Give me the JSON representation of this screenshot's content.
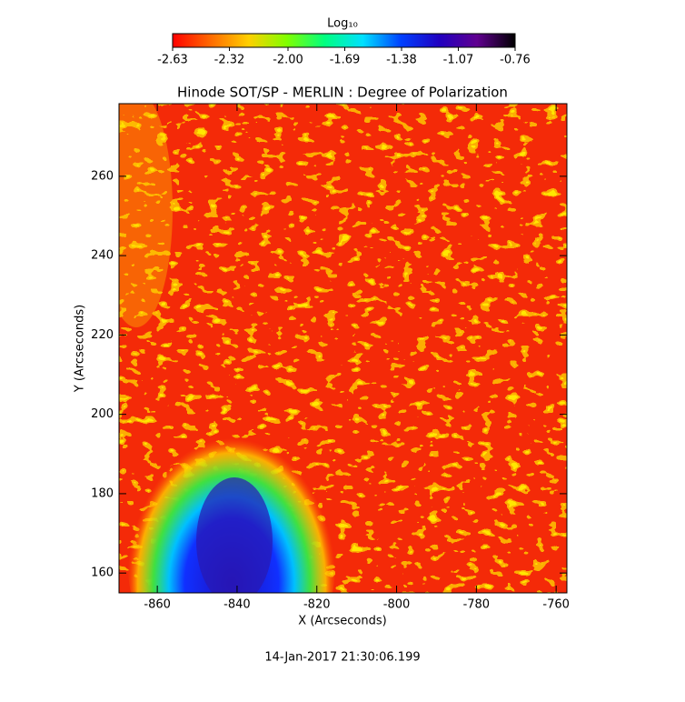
{
  "chart_data": {
    "type": "heatmap",
    "title": "Hinode SOT/SP - MERLIN : Degree of Polarization",
    "xlabel": "X (Arcseconds)",
    "ylabel": "Y (Arcseconds)",
    "xlim": [
      -869.6,
      -757.3
    ],
    "ylim": [
      155,
      278.3
    ],
    "xticks": [
      -860,
      -840,
      -820,
      -800,
      -780,
      -760
    ],
    "yticks": [
      160,
      180,
      200,
      220,
      240,
      260
    ],
    "colorbar_label": "Log₁₀",
    "clim": [
      -2.63,
      -0.76
    ],
    "cticks": [
      -2.63,
      -2.32,
      {
        "value": -2,
        "label": "-2.00"
      },
      -1.69,
      -1.38,
      -1.07,
      -0.76
    ],
    "colormap": [
      "#ff0000",
      "#ff6a00",
      "#ffd000",
      "#80ff00",
      "#00ff80",
      "#00e0ff",
      "#0040ff",
      "#2000c0",
      "#600090",
      "#000000"
    ],
    "footer": "14-Jan-2017 21:30:06.199"
  }
}
